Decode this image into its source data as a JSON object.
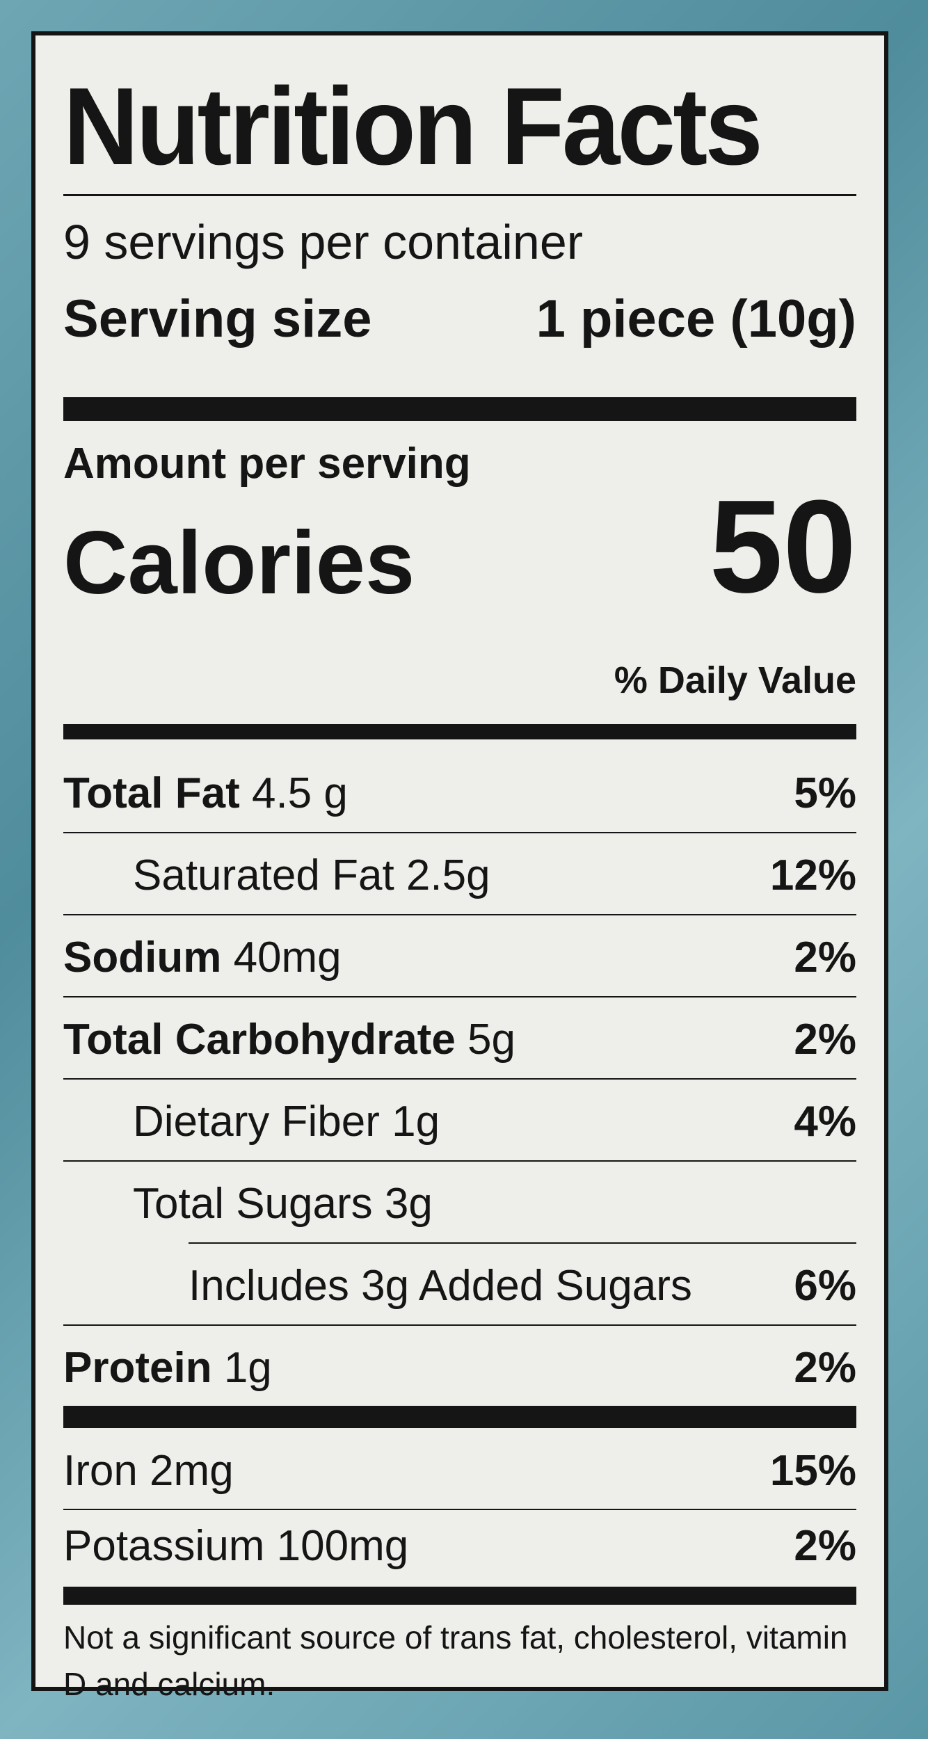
{
  "title": "Nutrition Facts",
  "servings_per_container": "9 servings per container",
  "serving_size": {
    "label": "Serving size",
    "value": "1 piece (10g)"
  },
  "amount_per_serving": "Amount per serving",
  "calories": {
    "label": "Calories",
    "value": "50"
  },
  "daily_value_header": "% Daily Value",
  "nutrients": [
    {
      "name": "Total Fat",
      "amount": "4.5 g",
      "dv": "5%"
    },
    {
      "name": "Saturated Fat 2.5g",
      "amount": "",
      "dv": "12%"
    },
    {
      "name": "Sodium",
      "amount": "40mg",
      "dv": "2%"
    },
    {
      "name": "Total Carbohydrate",
      "amount": "5g",
      "dv": "2%"
    },
    {
      "name": "Dietary Fiber 1g",
      "amount": "",
      "dv": "4%"
    },
    {
      "name": "Total Sugars 3g",
      "amount": "",
      "dv": ""
    },
    {
      "name": "Includes 3g Added Sugars",
      "amount": "",
      "dv": "6%"
    },
    {
      "name": "Protein",
      "amount": "1g",
      "dv": "2%"
    }
  ],
  "minerals": [
    {
      "name": "Iron 2mg",
      "dv": "15%"
    },
    {
      "name": "Potassium 100mg",
      "dv": "2%"
    }
  ],
  "footnote": "Not a significant source of trans fat, cholesterol, vitamin D and calcium."
}
